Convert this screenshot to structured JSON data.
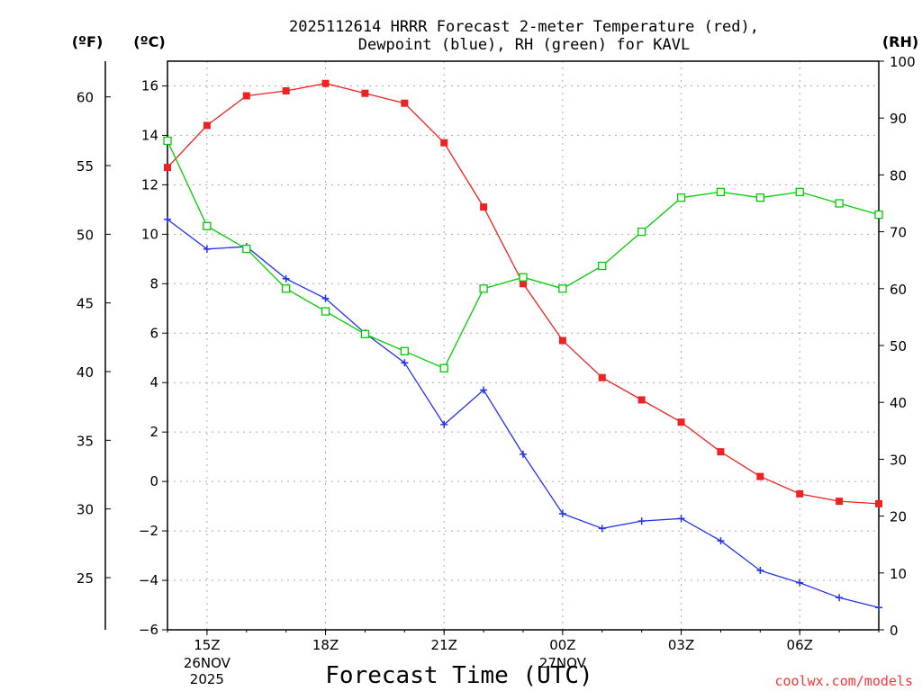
{
  "chart_data": {
    "type": "line",
    "title": [
      "2025112614 HRRR Forecast 2-meter Temperature (red),",
      "Dewpoint (blue), RH (green) for KAVL"
    ],
    "xlabel": "Forecast Time (UTC)",
    "credit": "coolwx.com/models",
    "x": [
      14,
      15,
      16,
      17,
      18,
      19,
      20,
      21,
      22,
      23,
      24,
      25,
      26,
      27,
      28,
      29,
      30,
      31,
      32
    ],
    "xlim": [
      14,
      32
    ],
    "x_ticks": [
      {
        "x": 15,
        "label": "15Z",
        "sub": [
          "26NOV",
          "2025"
        ]
      },
      {
        "x": 18,
        "label": "18Z",
        "sub": []
      },
      {
        "x": 21,
        "label": "21Z",
        "sub": []
      },
      {
        "x": 24,
        "label": "00Z",
        "sub": [
          "27NOV"
        ]
      },
      {
        "x": 27,
        "label": "03Z",
        "sub": []
      },
      {
        "x": 30,
        "label": "06Z",
        "sub": []
      }
    ],
    "y_celsius": {
      "unit": "(ºC)",
      "lim": [
        -6,
        17
      ],
      "ticks": [
        "-6",
        "-4",
        "-2",
        "0",
        "2",
        "4",
        "6",
        "8",
        "10",
        "12",
        "14",
        "16"
      ]
    },
    "y_fahrenheit": {
      "unit": "(ºF)",
      "ticks": [
        "25",
        "30",
        "35",
        "40",
        "45",
        "50",
        "55",
        "60"
      ]
    },
    "y_rh": {
      "unit": "(RH)",
      "lim": [
        0,
        100
      ],
      "ticks": [
        "0",
        "10",
        "20",
        "30",
        "40",
        "50",
        "60",
        "70",
        "80",
        "90",
        "100"
      ]
    },
    "series": [
      {
        "name": "Temperature",
        "axis": "celsius",
        "color": "#ee2222",
        "marker": "filled-square",
        "values": [
          12.7,
          14.4,
          15.6,
          15.8,
          16.1,
          15.7,
          15.3,
          13.7,
          11.1,
          8.0,
          5.7,
          4.2,
          3.3,
          2.4,
          1.2,
          0.2,
          -0.5,
          -0.8,
          -0.9
        ]
      },
      {
        "name": "Dewpoint",
        "axis": "celsius",
        "color": "#2233ee",
        "marker": "plus",
        "values": [
          10.6,
          9.4,
          9.5,
          8.2,
          7.4,
          6.0,
          4.8,
          2.3,
          3.7,
          1.1,
          -1.3,
          -1.9,
          -1.6,
          -1.5,
          -2.4,
          -3.6,
          -4.1,
          -4.7,
          -5.1
        ]
      },
      {
        "name": "RH",
        "axis": "rh",
        "color": "#00cc00",
        "marker": "open-square",
        "values": [
          86,
          71,
          67,
          60,
          56,
          52,
          49,
          46,
          60,
          62,
          60,
          64,
          70,
          76,
          77,
          76,
          77,
          75,
          73
        ]
      }
    ]
  }
}
